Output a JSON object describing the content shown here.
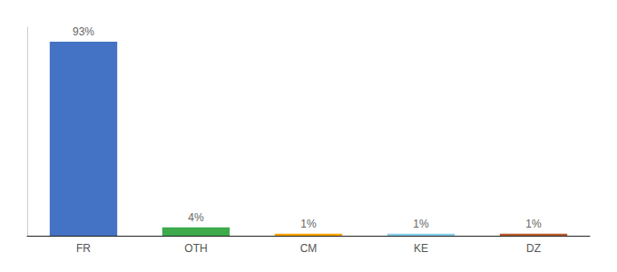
{
  "chart_data": {
    "type": "bar",
    "categories": [
      "FR",
      "OTH",
      "CM",
      "KE",
      "DZ"
    ],
    "values": [
      93,
      4,
      1,
      1,
      1
    ],
    "value_labels": [
      "93%",
      "4%",
      "1%",
      "1%",
      "1%"
    ],
    "colors": [
      "#4472C4",
      "#3DAA4C",
      "#FFA500",
      "#87CEEB",
      "#B85C2A"
    ],
    "ylim": [
      0,
      100
    ],
    "data_labels": true,
    "tick_labels": "x",
    "grid": false
  }
}
